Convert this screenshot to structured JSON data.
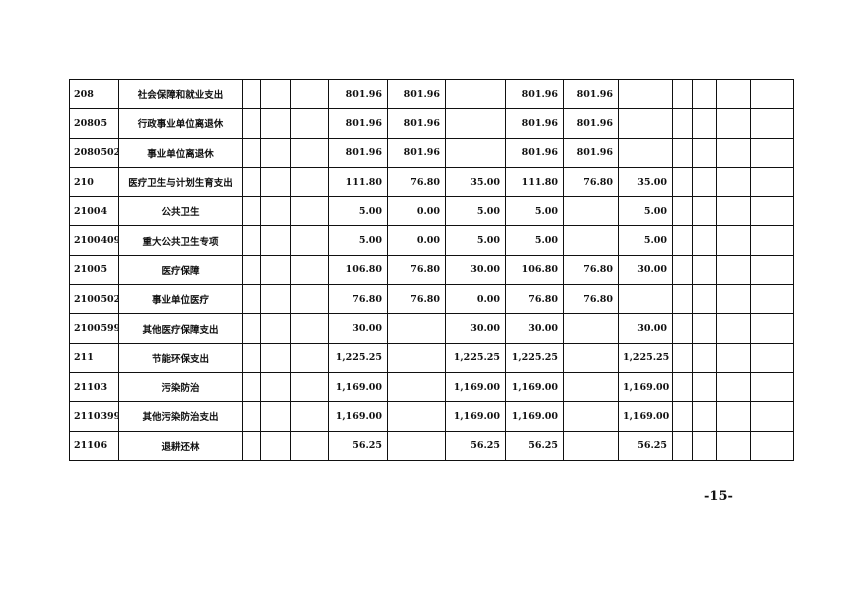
{
  "table": {
    "rows": [
      {
        "code": "208",
        "name": "社会保障和就业支出",
        "values": [
          "",
          "",
          "",
          "801.96",
          "801.96",
          "",
          "801.96",
          "801.96",
          "",
          "",
          "",
          "",
          ""
        ]
      },
      {
        "code": "20805",
        "name": "行政事业单位离退休",
        "values": [
          "",
          "",
          "",
          "801.96",
          "801.96",
          "",
          "801.96",
          "801.96",
          "",
          "",
          "",
          "",
          ""
        ]
      },
      {
        "code": "2080502",
        "name": "事业单位离退休",
        "values": [
          "",
          "",
          "",
          "801.96",
          "801.96",
          "",
          "801.96",
          "801.96",
          "",
          "",
          "",
          "",
          ""
        ]
      },
      {
        "code": "210",
        "name": "医疗卫生与计划生育支出",
        "values": [
          "",
          "",
          "",
          "111.80",
          "76.80",
          "35.00",
          "111.80",
          "76.80",
          "35.00",
          "",
          "",
          "",
          ""
        ]
      },
      {
        "code": "21004",
        "name": "公共卫生",
        "values": [
          "",
          "",
          "",
          "5.00",
          "0.00",
          "5.00",
          "5.00",
          "",
          "5.00",
          "",
          "",
          "",
          ""
        ]
      },
      {
        "code": "2100409",
        "name": "重大公共卫生专项",
        "values": [
          "",
          "",
          "",
          "5.00",
          "0.00",
          "5.00",
          "5.00",
          "",
          "5.00",
          "",
          "",
          "",
          ""
        ]
      },
      {
        "code": "21005",
        "name": "医疗保障",
        "values": [
          "",
          "",
          "",
          "106.80",
          "76.80",
          "30.00",
          "106.80",
          "76.80",
          "30.00",
          "",
          "",
          "",
          ""
        ]
      },
      {
        "code": "2100502",
        "name": "事业单位医疗",
        "values": [
          "",
          "",
          "",
          "76.80",
          "76.80",
          "0.00",
          "76.80",
          "76.80",
          "",
          "",
          "",
          "",
          ""
        ]
      },
      {
        "code": "2100599",
        "name": "其他医疗保障支出",
        "values": [
          "",
          "",
          "",
          "30.00",
          "",
          "30.00",
          "30.00",
          "",
          "30.00",
          "",
          "",
          "",
          ""
        ]
      },
      {
        "code": "211",
        "name": "节能环保支出",
        "values": [
          "",
          "",
          "",
          "1,225.25",
          "",
          "1,225.25",
          "1,225.25",
          "",
          "1,225.25",
          "",
          "",
          "",
          ""
        ]
      },
      {
        "code": "21103",
        "name": "污染防治",
        "values": [
          "",
          "",
          "",
          "1,169.00",
          "",
          "1,169.00",
          "1,169.00",
          "",
          "1,169.00",
          "",
          "",
          "",
          ""
        ]
      },
      {
        "code": "2110399",
        "name": "其他污染防治支出",
        "values": [
          "",
          "",
          "",
          "1,169.00",
          "",
          "1,169.00",
          "1,169.00",
          "",
          "1,169.00",
          "",
          "",
          "",
          ""
        ]
      },
      {
        "code": "21106",
        "name": "退耕还林",
        "values": [
          "",
          "",
          "",
          "56.25",
          "",
          "56.25",
          "56.25",
          "",
          "56.25",
          "",
          "",
          "",
          ""
        ]
      }
    ]
  },
  "page_number": "-15-"
}
